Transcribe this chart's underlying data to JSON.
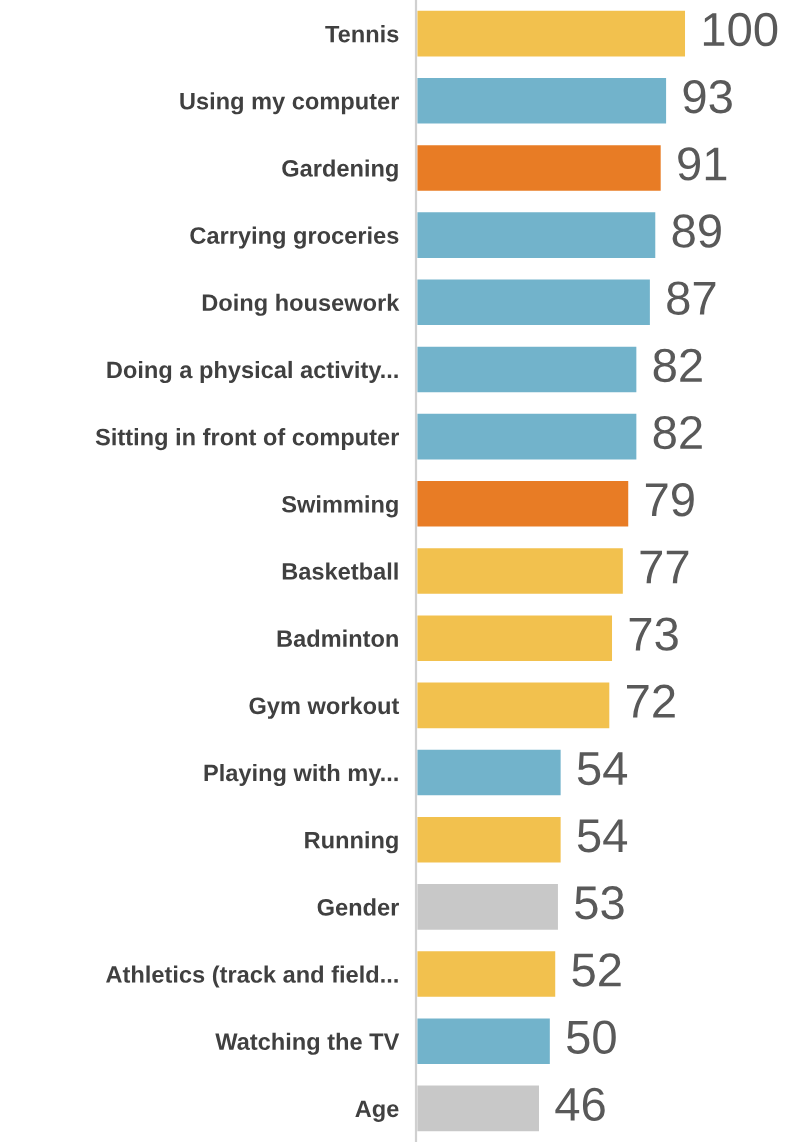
{
  "chart_data": {
    "type": "bar",
    "orientation": "horizontal",
    "data_labels": true,
    "grid": false,
    "legend": false,
    "categories": [
      "Tennis",
      "Using my computer",
      "Gardening",
      "Carrying groceries",
      "Doing housework",
      "Doing a physical activity...",
      "Sitting in front of computer",
      "Swimming",
      "Basketball",
      "Badminton",
      "Gym workout",
      "Playing with my...",
      "Running",
      "Gender",
      "Athletics (track and field...",
      "Watching the TV",
      "Age"
    ],
    "values": [
      100,
      93,
      91,
      89,
      87,
      82,
      82,
      79,
      77,
      73,
      72,
      54,
      54,
      53,
      52,
      50,
      46
    ],
    "colors": [
      "#f2c14e",
      "#72b3cb",
      "#e87c25",
      "#72b3cb",
      "#72b3cb",
      "#72b3cb",
      "#72b3cb",
      "#e87c25",
      "#f2c14e",
      "#f2c14e",
      "#f2c14e",
      "#72b3cb",
      "#f2c14e",
      "#c8c8c8",
      "#f2c14e",
      "#72b3cb",
      "#c8c8c8"
    ]
  }
}
